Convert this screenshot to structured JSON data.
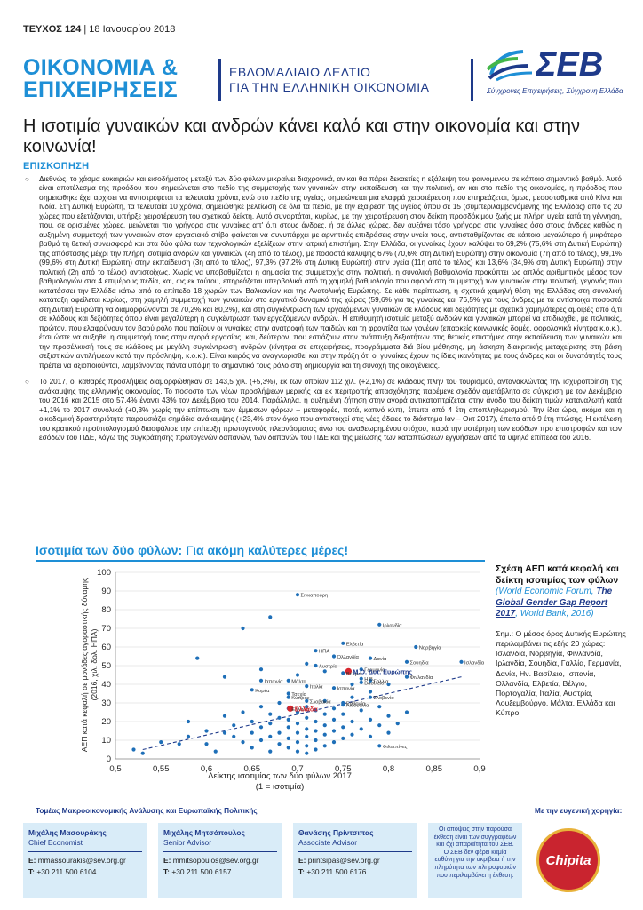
{
  "header": {
    "issue_label": "ΤΕΥΧΟΣ 124",
    "issue_date": "18 Ιανουαρίου 2018",
    "brand_line1": "ΟΙΚΟΝΟΜΙΑ &",
    "brand_line2": "ΕΠΙΧΕΙΡΗΣΕΙΣ",
    "subtitle_line1": "ΕΒΔΟΜΑΔΙΑΙΟ ΔΕΛΤΙΟ",
    "subtitle_line2": "ΓΙΑ ΤΗΝ ΕΛΛΗΝΙΚΗ ΟΙΚΟΝΟΜΙΑ",
    "logo_text": "ΣΕΒ",
    "logo_tagline": "Σύγχρονες Επιχειρήσεις, Σύγχρονη Ελλάδα",
    "accent_color": "#1e8fd6",
    "navy_color": "#1e3a8a"
  },
  "main_title": "Η ισοτιμία γυναικών και ανδρών κάνει καλό και στην οικονομία και στην κοινωνία!",
  "section_heading": "ΕΠΙΣΚΟΠΗΣΗ",
  "paragraphs": [
    "Διεθνώς, το χάσμα ευκαιριών και εισοδήματος μεταξύ των δύο φύλων μικραίνει διαχρονικά, αν και θα πάρει δεκαετίες η εξάλειψη του φαινομένου σε κάποιο σημαντικό βαθμό. Αυτό είναι αποτέλεσμα της προόδου που σημειώνεται στο πεδίο της συμμετοχής των γυναικών στην εκπαίδευση και την πολιτική, αν και στο πεδίο της οικονομίας, η πρόοδος που σημειώθηκε έχει αρχίσει να αντιστρέφεται τα τελευταία χρόνια, ενώ στο πεδίο της υγείας, σημειώνεται μια ελαφρά χειροτέρευση που επηρεάζεται, όμως, μεσοσταθμικά από Κίνα και Ινδία. Στη Δυτική Ευρώπη, τα τελευταία 10 χρόνια, σημειώθηκε βελτίωση σε όλα τα πεδία, με την εξαίρεση της υγείας όπου σε 15 (συμπεριλαμβανόμενης της Ελλάδας) από τις 20 χώρες που εξετάζονται, υπήρξε χειροτέρευση του σχετικού δείκτη. Αυτό συναρτάται, κυρίως, με την χειροτέρευση στον δείκτη προσδόκιμου ζωής με πλήρη υγεία κατά τη γέννηση, που, σε ορισμένες χώρες, μειώνεται πιο γρήγορα στις γυναίκες απ' ό,τι στους άνδρες, ή σε άλλες χώρες, δεν αυξάνει τόσο γρήγορα στις γυναίκες όσο στους άνδρες καθώς η αυξημένη συμμετοχή των γυναικών στον εργασιακό στίβο φαίνεται να συνυπάρχει με αρνητικές επιδράσεις στην υγεία τους, αντισταθμίζοντας σε κάποιο μεγαλύτερο ή μικρότερο βαθμό τη θετική συνεισφορά και στα δύο φύλα των τεχνολογικών εξελίξεων στην ιατρική επιστήμη. Στην Ελλάδα, οι γυναίκες έχουν καλύψει το 69,2% (75,6% στη Δυτική Ευρώπη) της απόστασης μέχρι την πλήρη ισοτιμία ανδρών και γυναικών (4η από το τέλος), με ποσοστά κάλυψης 67% (70,6% στη Δυτική Ευρώπη) στην οικονομία (7η από το τέλος), 99,1% (99,6% στη Δυτική Ευρώπη) στην εκπαίδευση (3η από το τέλος), 97,3% (97,2% στη Δυτική Ευρώπη) στην υγεία (11η από το τέλος) και 13,6% (34,9% στη Δυτική Ευρώπη) στην πολιτική (2η από το τέλος) αντιστοίχως. Χωρίς να υποβαθμίζεται η σημασία της συμμετοχής στην πολιτική, η συνολική βαθμολογία προκύπτει ως απλός αριθμητικός μέσος των βαθμολογιών στα 4 επιμέρους πεδία, και, ως εκ τούτου, επηρεάζεται υπερβολικά από τη χαμηλή βαθμολογία που αφορά στη συμμετοχή των γυναικών στην πολιτική, γεγονός που κατατάσσει την Ελλάδα κάτω από το επίπεδο 18 χωρών των Βαλκανίων και της Ανατολικής Ευρώπης. Σε κάθε περίπτωση, η σχετικά χαμηλή θέση της Ελλάδας στη συνολική κατάταξη οφείλεται κυρίως, στη χαμηλή συμμετοχή των γυναικών στο εργατικό δυναμικό της χώρας (59,6% για τις γυναίκες και 76,5% για τους άνδρες με τα αντίστοιχα ποσοστά στη Δυτική Ευρώπη να διαμορφώνονται σε 70,2% και 80,2%), και στη συγκέντρωση των εργαζόμενων γυναικών σε κλάδους και δεξιότητες με σχετικά χαμηλότερες αμοιβές από ό,τι σε κλάδους και δεξιότητες όπου είναι μεγαλύτερη η συγκέντρωση των εργαζόμενων ανδρών. Η επιθυμητή ισοτιμία μεταξύ ανδρών και γυναικών μπορεί να επιδιωχθεί, με πολιτικές, πρώτον, που ελαφρύνουν τον βαρύ ρόλο που παίζουν οι γυναίκες στην ανατροφή των παιδιών και τη φροντίδα των γονέων (επαρκείς κοινωνικές δομές, φορολογικά κίνητρα κ.ο.κ.), έτσι ώστε να αυξηθεί η συμμετοχή τους στην αγορά εργασίας, και, δεύτερον, που εστιάζουν στην ανάπτυξη δεξιοτήτων στις θετικές επιστήμες στην εκπαίδευση των γυναικών και την προσέλκυσή τους σε κλάδους με μεγάλη συγκέντρωση ανδρών (κίνητρα σε επιχειρήσεις, προγράμματα διά βίου μάθησης, μη άσκηση διακριτικής μεταχείρισης στη βάση σεξιστικών αντιλήψεων κατά την πρόσληψη, κ.ο.κ.). Είναι καιρός να αναγνωρισθεί και στην πράξη ότι οι γυναίκες έχουν τις ίδιες ικανότητες με τους άνδρες και οι δυνατότητές τους πρέπει να αξιοποιούνται, λαμβάνοντας πάντα υπόψη το σημαντικό τους ρόλο στη δημιουργία και τη συνοχή της οικογένειας.",
    "Το 2017, οι καθαρές προσλήψεις διαμορφώθηκαν σε 143,5 χιλ. (+5,3%), εκ των οποίων 112 χιλ. (+2,1%) σε κλάδους πλην του τουρισμού, αντανακλώντας την ισχυροποίηση της ανάκαμψης της ελληνικής οικονομίας. Το ποσοστό των νέων προσλήψεων μερικής και εκ περιτροπής απασχόλησης παρέμενε σχεδόν αμετάβλητο σε σύγκριση με τον Δεκέμβριο του 2016 και 2015 στο 57,4% έναντι 43% τον Δεκέμβριο του 2014. Παράλληλα, η αυξημένη ζήτηση στην αγορά αντικατοπτρίζεται στην άνοδο του δείκτη τιμών καταναλωτή κατά +1,1% το 2017 συνολικά (+0,3% χωρίς την επίπτωση των έμμεσων φόρων – μεταφορές, ποτά, καπνό κλπ), έπειτα από 4 έτη αποπληθωρισμού. Την ίδια ώρα, ακόμα και η οικοδομική δραστηριότητα παρουσιάζει σημάδια ανάκαμψης (+23,4% στον όγκο που αντιστοιχεί στις νέες άδειες το διάστημα Ιαν – Οκτ 2017), έπειτα από 9 έτη πτώσης. Η εκτέλεση του κρατικού προϋπολογισμού διασφάλισε την επίτευξη πρωτογενούς πλεονάσματος άνω του αναθεωρημένου στόχου, παρά την υστέρηση των εσόδων προ επιστροφών και των εσόδων του ΠΔΕ, λόγω της συγκράτησης πρωτογενών δαπανών, των δαπανών του ΠΔΕ και της μείωσης των καταπτώσεων εγγυήσεων από τα υψηλά επίπεδα του 2016."
  ],
  "chart_section_title": "Ισοτιμία των δύο φύλων: Για ακόμη καλύτερες μέρες!",
  "chart_data": {
    "type": "scatter",
    "xlabel_line1": "Δείκτης ισοτιμίας των δύο φύλων 2017",
    "xlabel_line2": "(1 = ισοτιμία)",
    "ylabel_line1": "ΑΕΠ κατά κεφαλή σε μονάδες αγοραστικής δύναμης",
    "ylabel_line2": "(2016, χιλ. δολ. ΗΠΑ)",
    "xlim": [
      0.5,
      0.9
    ],
    "ylim": [
      0,
      100
    ],
    "x_ticks": [
      "0,5",
      "0,55",
      "0,6",
      "0,65",
      "0,7",
      "0,75",
      "0,8",
      "0,85",
      "0,9"
    ],
    "y_ticks": [
      "0",
      "10",
      "20",
      "30",
      "40",
      "50",
      "60",
      "70",
      "80",
      "90",
      "100"
    ],
    "trendline": {
      "x0": 0.53,
      "y0": 5,
      "x1": 0.88,
      "y1": 44
    },
    "point_color": "#1e6fb8",
    "highlight_color": "#d7262e",
    "labeled_points": [
      {
        "label": "Σιγκαπούρη",
        "x": 0.7,
        "y": 88
      },
      {
        "label": "Ιρλανδία",
        "x": 0.79,
        "y": 72
      },
      {
        "label": "Ελβετία",
        "x": 0.75,
        "y": 62
      },
      {
        "label": "Νορβηγία",
        "x": 0.83,
        "y": 60
      },
      {
        "label": "Ισλανδία",
        "x": 0.88,
        "y": 52
      },
      {
        "label": "ΗΠΑ",
        "x": 0.72,
        "y": 58
      },
      {
        "label": "Ολλανδία",
        "x": 0.74,
        "y": 55
      },
      {
        "label": "Δανία",
        "x": 0.78,
        "y": 54
      },
      {
        "label": "Σουηδία",
        "x": 0.82,
        "y": 52
      },
      {
        "label": "Αυστρία",
        "x": 0.72,
        "y": 50
      },
      {
        "label": "Γερμανία",
        "x": 0.77,
        "y": 48
      },
      {
        "label": "Βέλγιο",
        "x": 0.75,
        "y": 46
      },
      {
        "label": "Φινλανδία",
        "x": 0.82,
        "y": 44
      },
      {
        "label": "Γαλλία",
        "x": 0.78,
        "y": 42
      },
      {
        "label": "Η.Β.",
        "x": 0.77,
        "y": 43
      },
      {
        "label": "Βασίλειο",
        "x": 0.77,
        "y": 41
      },
      {
        "label": "Ιαπωνία",
        "x": 0.66,
        "y": 42
      },
      {
        "label": "Μάλτα",
        "x": 0.69,
        "y": 42
      },
      {
        "label": "Ιταλία",
        "x": 0.71,
        "y": 39
      },
      {
        "label": "Ισπανία",
        "x": 0.74,
        "y": 38
      },
      {
        "label": "Κορέα",
        "x": 0.65,
        "y": 37
      },
      {
        "label": "Σλοβενία",
        "x": 0.78,
        "y": 33
      },
      {
        "label": "Τσεχία",
        "x": 0.69,
        "y": 35
      },
      {
        "label": "Κύπρος",
        "x": 0.69,
        "y": 33
      },
      {
        "label": "Εσθονία",
        "x": 0.75,
        "y": 30
      },
      {
        "label": "Σλοβακία",
        "x": 0.71,
        "y": 31
      },
      {
        "label": "Λιθουανία",
        "x": 0.75,
        "y": 29
      },
      {
        "label": "Ελλάδα",
        "x": 0.69,
        "y": 27
      },
      {
        "label": "Φιλιππίνες",
        "x": 0.79,
        "y": 7
      }
    ],
    "highlight_points": [
      {
        "label": "Μ.Ο. Δυτ. Ευρώπης",
        "x": 0.756,
        "y": 47
      },
      {
        "label": "Ελλάδα",
        "x": 0.692,
        "y": 27
      }
    ],
    "points": [
      {
        "x": 0.52,
        "y": 5
      },
      {
        "x": 0.53,
        "y": 3
      },
      {
        "x": 0.55,
        "y": 9
      },
      {
        "x": 0.57,
        "y": 8
      },
      {
        "x": 0.58,
        "y": 12
      },
      {
        "x": 0.58,
        "y": 20
      },
      {
        "x": 0.59,
        "y": 54
      },
      {
        "x": 0.6,
        "y": 8
      },
      {
        "x": 0.6,
        "y": 15
      },
      {
        "x": 0.61,
        "y": 4
      },
      {
        "x": 0.62,
        "y": 23
      },
      {
        "x": 0.62,
        "y": 14
      },
      {
        "x": 0.63,
        "y": 12
      },
      {
        "x": 0.63,
        "y": 18
      },
      {
        "x": 0.64,
        "y": 9
      },
      {
        "x": 0.64,
        "y": 25
      },
      {
        "x": 0.64,
        "y": 70
      },
      {
        "x": 0.65,
        "y": 6
      },
      {
        "x": 0.65,
        "y": 14
      },
      {
        "x": 0.65,
        "y": 20
      },
      {
        "x": 0.66,
        "y": 10
      },
      {
        "x": 0.66,
        "y": 17
      },
      {
        "x": 0.66,
        "y": 28
      },
      {
        "x": 0.67,
        "y": 4
      },
      {
        "x": 0.67,
        "y": 12
      },
      {
        "x": 0.67,
        "y": 19
      },
      {
        "x": 0.67,
        "y": 24
      },
      {
        "x": 0.68,
        "y": 8
      },
      {
        "x": 0.68,
        "y": 14
      },
      {
        "x": 0.68,
        "y": 22
      },
      {
        "x": 0.68,
        "y": 30
      },
      {
        "x": 0.69,
        "y": 6
      },
      {
        "x": 0.69,
        "y": 11
      },
      {
        "x": 0.69,
        "y": 17
      },
      {
        "x": 0.69,
        "y": 21
      },
      {
        "x": 0.7,
        "y": 4
      },
      {
        "x": 0.7,
        "y": 9
      },
      {
        "x": 0.7,
        "y": 14
      },
      {
        "x": 0.7,
        "y": 19
      },
      {
        "x": 0.7,
        "y": 25
      },
      {
        "x": 0.71,
        "y": 3
      },
      {
        "x": 0.71,
        "y": 7
      },
      {
        "x": 0.71,
        "y": 12
      },
      {
        "x": 0.71,
        "y": 16
      },
      {
        "x": 0.71,
        "y": 22
      },
      {
        "x": 0.71,
        "y": 28
      },
      {
        "x": 0.72,
        "y": 5
      },
      {
        "x": 0.72,
        "y": 10
      },
      {
        "x": 0.72,
        "y": 15
      },
      {
        "x": 0.72,
        "y": 20
      },
      {
        "x": 0.72,
        "y": 26
      },
      {
        "x": 0.73,
        "y": 7
      },
      {
        "x": 0.73,
        "y": 13
      },
      {
        "x": 0.73,
        "y": 18
      },
      {
        "x": 0.73,
        "y": 24
      },
      {
        "x": 0.73,
        "y": 31
      },
      {
        "x": 0.74,
        "y": 9
      },
      {
        "x": 0.74,
        "y": 15
      },
      {
        "x": 0.74,
        "y": 21
      },
      {
        "x": 0.74,
        "y": 27
      },
      {
        "x": 0.75,
        "y": 11
      },
      {
        "x": 0.75,
        "y": 17
      },
      {
        "x": 0.75,
        "y": 24
      },
      {
        "x": 0.76,
        "y": 13
      },
      {
        "x": 0.76,
        "y": 20
      },
      {
        "x": 0.76,
        "y": 33
      },
      {
        "x": 0.77,
        "y": 16
      },
      {
        "x": 0.77,
        "y": 26
      },
      {
        "x": 0.78,
        "y": 12
      },
      {
        "x": 0.78,
        "y": 21
      },
      {
        "x": 0.79,
        "y": 18
      },
      {
        "x": 0.79,
        "y": 28
      },
      {
        "x": 0.8,
        "y": 14
      },
      {
        "x": 0.8,
        "y": 23
      },
      {
        "x": 0.81,
        "y": 19
      },
      {
        "x": 0.82,
        "y": 25
      },
      {
        "x": 0.62,
        "y": 44
      },
      {
        "x": 0.66,
        "y": 48
      },
      {
        "x": 0.67,
        "y": 76
      },
      {
        "x": 0.7,
        "y": 45
      },
      {
        "x": 0.71,
        "y": 51
      },
      {
        "x": 0.73,
        "y": 47
      },
      {
        "x": 0.76,
        "y": 40
      },
      {
        "x": 0.78,
        "y": 36
      },
      {
        "x": 0.8,
        "y": 40
      }
    ]
  },
  "side": {
    "title": "Σχέση ΑΕΠ κατά κεφαλή και δείκτη ισοτιμίας των φύλων",
    "source_prefix": "(World Economic Forum, ",
    "source_link": "The Global Gender Gap Report 2017",
    "source_suffix": ", World Bank, 2016)",
    "note": "Σημ.: Ο μέσος όρος Δυτικής Ευρώπης περιλαμβάνει τις εξής 20 χώρες: Ισλανδία, Νορβηγία, Φινλανδία, Ιρλανδία, Σουηδία, Γαλλία, Γερμανία, Δανία, Ην. Βασίλειο, Ισπανία, Ολλανδία, Ελβετία, Βέλγιο, Πορτογαλία, Ιταλία, Αυστρία, Λουξεμβούργο, Μάλτα, Ελλάδα και Κύπρο."
  },
  "footer": {
    "department": "Τομέας Μακροοικονομικής Ανάλυσης και Ευρωπαϊκής Πολιτικής",
    "sponsor_label": "Με την ευγενική χορηγία:",
    "sponsor_name": "Chipita",
    "contacts": [
      {
        "name": "Μιχάλης Μασουράκης",
        "role": "Chief Economist",
        "email_label": "E:",
        "email": "mmassourakis@sev.org.gr",
        "phone_label": "T:",
        "phone": "+30 211 500 6104"
      },
      {
        "name": "Μιχάλης Μητσόπουλος",
        "role": "Senior Advisor",
        "email_label": "E:",
        "email": "mmitsopoulos@sev.org.gr",
        "phone_label": "T:",
        "phone": "+30 211 500 6157"
      },
      {
        "name": "Θανάσης Πρίντσιπας",
        "role": "Associate Advisor",
        "email_label": "E:",
        "email": "printsipas@sev.org.gr",
        "phone_label": "T:",
        "phone": "+30 211 500 6176"
      }
    ],
    "disclaimer": "Οι απόψεις στην παρούσα έκθεση είναι των συγγραφέων και όχι απαραίτητα του ΣΕΒ. Ο ΣΕΒ δεν φέρει καμία ευθύνη για την ακρίβεια ή την πληρότητα των πληροφοριών που περιλαμβάνει η έκθεση."
  }
}
